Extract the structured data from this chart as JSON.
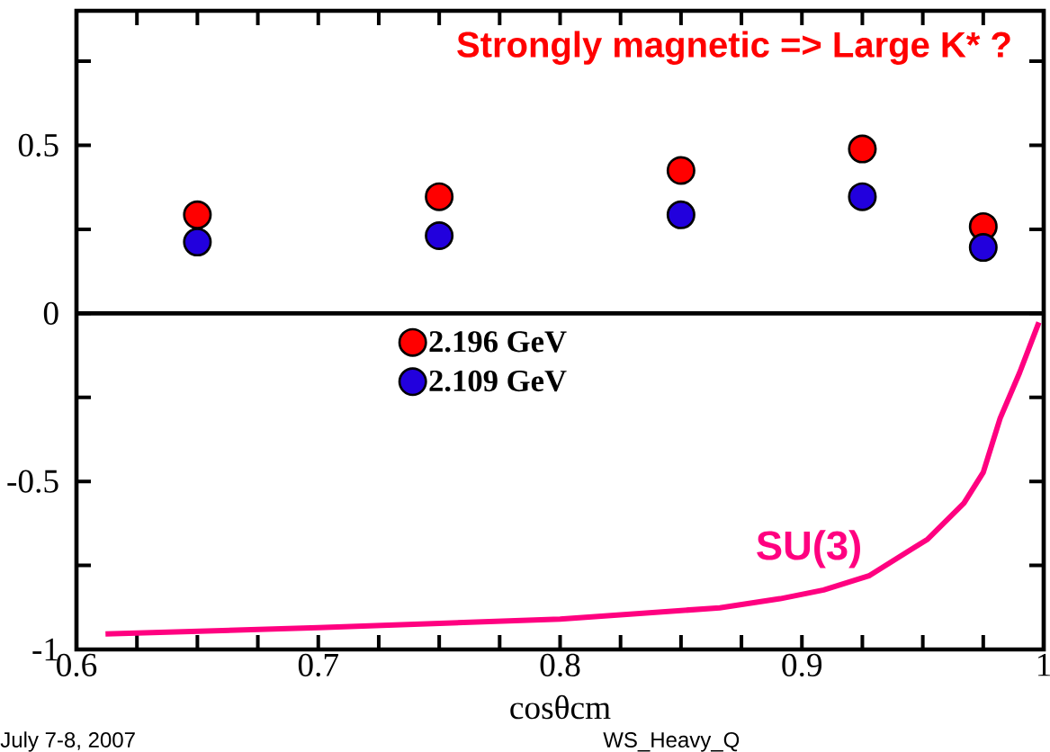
{
  "chart_data": {
    "type": "scatter",
    "xlabel": "cosθcm",
    "annotations": [
      "Strongly magnetic => Large K* ?",
      "July 7-8, 2007",
      "WS_Heavy_Q"
    ],
    "x": [
      0.65,
      0.75,
      0.85,
      0.925,
      0.975
    ],
    "series": [
      {
        "name": "2.196 GeV",
        "color": "#ff0000",
        "marker": "circle",
        "values": [
          0.293,
          0.347,
          0.425,
          0.489,
          0.258
        ]
      },
      {
        "name": "2.109 GeV",
        "color": "#2200dd",
        "marker": "circle",
        "values": [
          0.212,
          0.231,
          0.293,
          0.347,
          0.196
        ]
      },
      {
        "name": "SU(3)",
        "type": "line",
        "color": "#ff0080",
        "marker": "none",
        "x": [
          0.612,
          0.7,
          0.8,
          0.866,
          0.891,
          0.909,
          0.928,
          0.94,
          0.952,
          0.967,
          0.975,
          0.982,
          0.99,
          0.998
        ],
        "values": [
          -0.954,
          -0.935,
          -0.91,
          -0.876,
          -0.849,
          -0.823,
          -0.78,
          -0.726,
          -0.672,
          -0.565,
          -0.473,
          -0.312,
          -0.177,
          -0.027
        ]
      }
    ],
    "xlim": [
      0.6,
      1.0
    ],
    "ylim": [
      -1,
      0.9
    ],
    "xticks": [
      0.6,
      {
        "value": 0.625,
        "label": null
      },
      {
        "value": 0.65,
        "label": null
      },
      {
        "value": 0.675,
        "label": null
      },
      0.7,
      {
        "value": 0.725,
        "label": null
      },
      {
        "value": 0.75,
        "label": null
      },
      {
        "value": 0.775,
        "label": null
      },
      0.8,
      {
        "value": 0.825,
        "label": null
      },
      {
        "value": 0.85,
        "label": null
      },
      {
        "value": 0.875,
        "label": null
      },
      0.9,
      {
        "value": 0.925,
        "label": null
      },
      {
        "value": 0.95,
        "label": null
      },
      {
        "value": 0.975,
        "label": null
      },
      1
    ],
    "yticks": [
      -1,
      {
        "value": -0.75,
        "label": null
      },
      -0.5,
      {
        "value": -0.25,
        "label": null
      },
      0,
      {
        "value": 0.25,
        "label": null
      },
      0.5,
      {
        "value": 0.75,
        "label": null
      }
    ],
    "ref_lines": [
      {
        "axis": "y",
        "value": 0
      }
    ],
    "legend": "left"
  }
}
